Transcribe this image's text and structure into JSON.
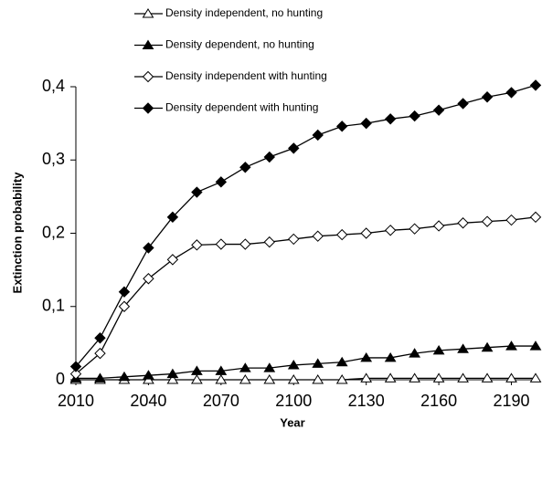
{
  "chart_data": {
    "type": "line",
    "x_label": "Year",
    "y_label": "Extinction probability",
    "x": [
      2010,
      2020,
      2030,
      2040,
      2050,
      2060,
      2070,
      2080,
      2090,
      2100,
      2110,
      2120,
      2130,
      2140,
      2150,
      2160,
      2170,
      2180,
      2190,
      2200
    ],
    "xlim": [
      2010,
      2200
    ],
    "xticks": [
      2010,
      2040,
      2070,
      2100,
      2130,
      2160,
      2190
    ],
    "ylim": [
      0,
      0.4
    ],
    "yticks": [
      0,
      {
        "value": 0.1,
        "label": "0,1"
      },
      {
        "value": 0.2,
        "label": "0,2"
      },
      {
        "value": 0.3,
        "label": "0,3"
      },
      {
        "value": 0.4,
        "label": "0,4"
      }
    ],
    "grid": false,
    "legend": "top",
    "series": [
      {
        "name": "Density independent, no hunting",
        "color": "#000000",
        "marker": "triangle",
        "marker_fill": "#ffffff",
        "values": [
          0,
          0,
          0,
          0,
          0,
          0,
          0,
          0,
          0,
          0,
          0,
          0,
          0.002,
          0.002,
          0.002,
          0.002,
          0.002,
          0.002,
          0.002,
          0.002
        ]
      },
      {
        "name": "Density dependent, no hunting",
        "color": "#000000",
        "marker": "triangle",
        "marker_fill": "#000000",
        "values": [
          0.002,
          0.002,
          0.004,
          0.006,
          0.008,
          0.012,
          0.012,
          0.016,
          0.016,
          0.02,
          0.022,
          0.024,
          0.03,
          0.03,
          0.036,
          0.04,
          0.042,
          0.044,
          0.046,
          0.046
        ]
      },
      {
        "name": "Density independent with hunting",
        "color": "#000000",
        "marker": "diamond",
        "marker_fill": "#ffffff",
        "values": [
          0.008,
          0.036,
          0.1,
          0.138,
          0.164,
          0.184,
          0.185,
          0.185,
          0.188,
          0.192,
          0.196,
          0.198,
          0.2,
          0.204,
          0.206,
          0.21,
          0.214,
          0.216,
          0.218,
          0.222
        ]
      },
      {
        "name": "Density dependent with hunting",
        "color": "#000000",
        "marker": "diamond",
        "marker_fill": "#000000",
        "values": [
          0.018,
          0.057,
          0.12,
          0.18,
          0.222,
          0.256,
          0.27,
          0.29,
          0.304,
          0.316,
          0.334,
          0.346,
          0.35,
          0.356,
          0.36,
          0.368,
          0.377,
          0.386,
          0.392,
          0.402
        ]
      }
    ]
  }
}
